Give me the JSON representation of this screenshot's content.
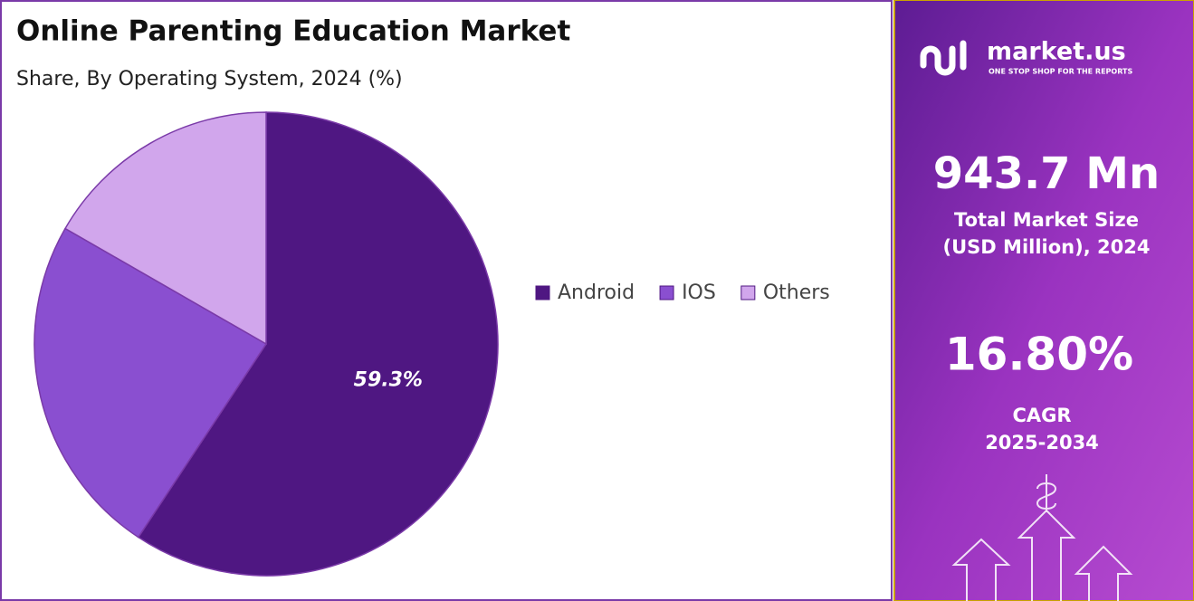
{
  "chart_data": {
    "type": "pie",
    "title": "Online Parenting Education Market",
    "subtitle": "Share, By Operating System, 2024 (%)",
    "categories": [
      "Android",
      "IOS",
      "Others"
    ],
    "values": [
      59.3,
      24.0,
      16.7
    ],
    "value_labels": [
      "59.3%",
      null,
      null
    ],
    "colors": [
      "#4f1782",
      "#8a4fd0",
      "#d1a6ec"
    ],
    "legend": "right"
  },
  "sidebar": {
    "brand": "market.us",
    "tagline": "ONE STOP SHOP FOR THE REPORTS",
    "market_size": "943.7 Mn",
    "market_size_label": [
      "Total Market Size",
      "(USD Million), 2024"
    ],
    "cagr": "16.80%",
    "cagr_label": "CAGR",
    "cagr_period": "2025-2034"
  }
}
